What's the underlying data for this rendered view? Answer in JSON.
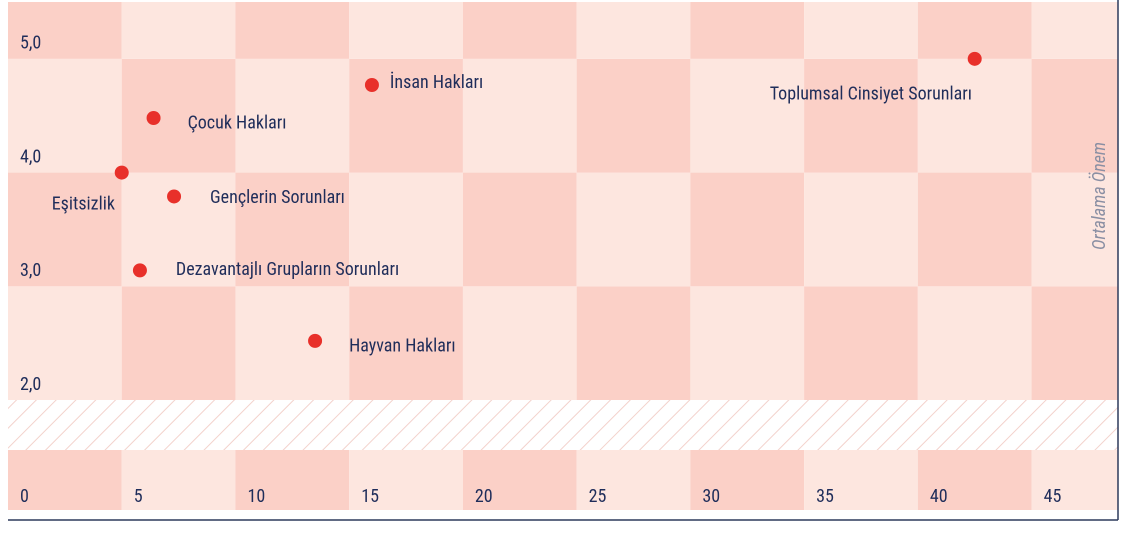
{
  "chart_data": {
    "type": "scatter",
    "ylabel": "Ortalama Önem",
    "x": [
      5,
      5.8,
      6.4,
      7.3,
      13.5,
      16,
      42.5
    ],
    "values": [
      4.0,
      3.14,
      4.48,
      3.79,
      2.52,
      4.77,
      5.0
    ],
    "labels": [
      "Eşitsizlik",
      "Dezavantajlı Grupların Sorunları",
      "Çocuk Hakları",
      "Gençlerin Sorunları",
      "Hayvan Hakları",
      "İnsan Hakları",
      "Toplumsal Cinsiyet Sorunları"
    ],
    "color": "#e8302a",
    "xlim": [
      0,
      48.8
    ],
    "xticks": [
      0,
      5,
      10,
      15,
      20,
      25,
      30,
      35,
      40,
      45
    ],
    "ylim": [
      2,
      5.5
    ],
    "yticks": [
      {
        "value": 2,
        "label": "2,0"
      },
      {
        "value": 3,
        "label": "3,0"
      },
      {
        "value": 4,
        "label": "4,0"
      },
      {
        "value": 5,
        "label": "5,0"
      }
    ]
  }
}
